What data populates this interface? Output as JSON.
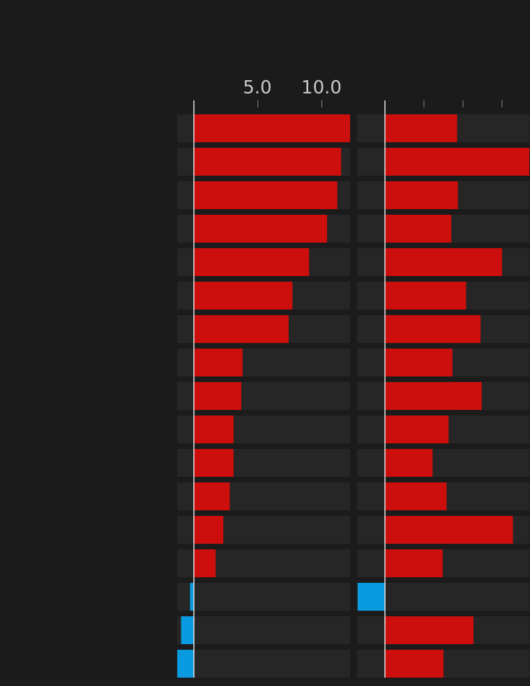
{
  "chart_data": [
    {
      "type": "bar",
      "orientation": "horizontal",
      "xlim": [
        -1.3,
        12.2
      ],
      "ticks": [
        0,
        5,
        10
      ],
      "tick_labels": [
        "",
        "5.0",
        "10.0"
      ],
      "values": [
        12.2,
        11.5,
        11.2,
        10.4,
        9.0,
        7.7,
        7.4,
        3.8,
        3.7,
        3.1,
        3.1,
        2.8,
        2.3,
        1.7,
        -0.3,
        -1.0,
        -1.3
      ],
      "colors": {
        "positive": "#cc0f0c",
        "negative": "#0a9ae0"
      }
    },
    {
      "type": "bar",
      "orientation": "horizontal",
      "xlim": [
        -0.7,
        3.7
      ],
      "ticks": [
        0,
        1,
        2,
        3
      ],
      "tick_labels": [
        "",
        "",
        "",
        ""
      ],
      "values": [
        1.85,
        3.7,
        1.87,
        1.7,
        3.0,
        2.08,
        2.45,
        1.73,
        2.48,
        1.63,
        1.22,
        1.58,
        3.28,
        1.48,
        -0.7,
        2.27,
        1.5
      ],
      "colors": {
        "positive": "#cc0f0c",
        "negative": "#0a9ae0"
      }
    }
  ]
}
